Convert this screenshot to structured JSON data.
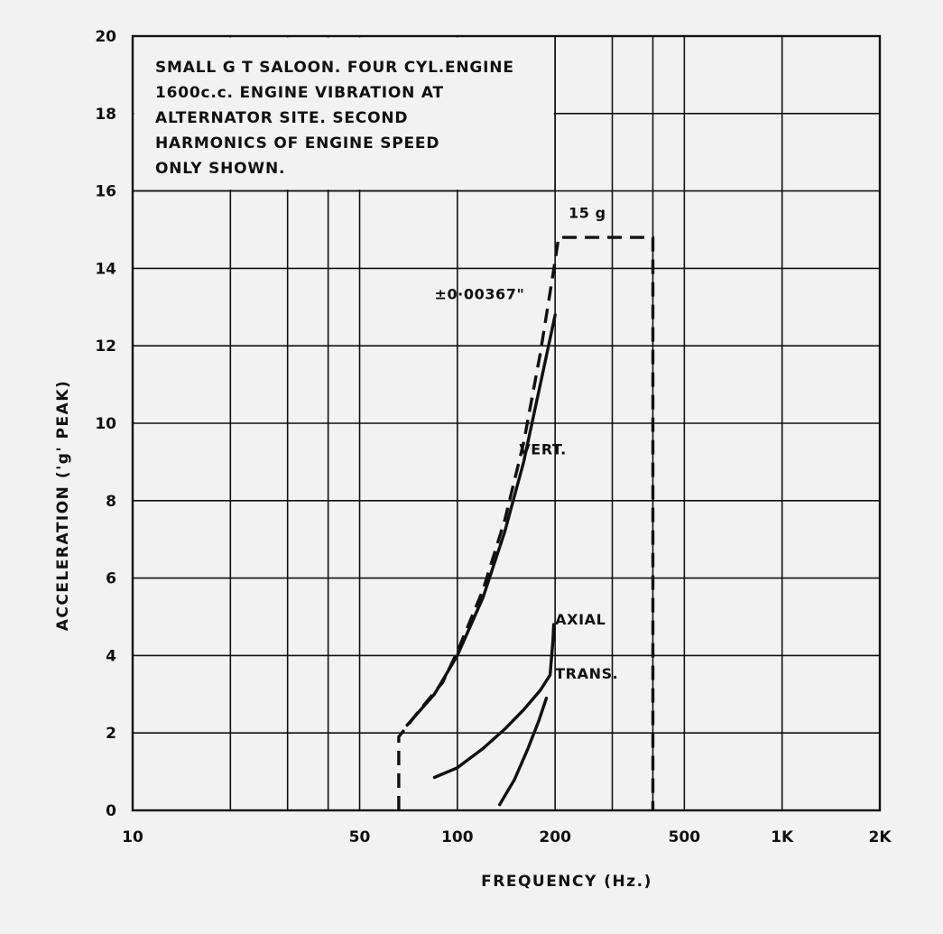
{
  "chart_data": {
    "type": "line",
    "title_lines": [
      "SMALL G T SALOON. FOUR CYL.ENGINE",
      "1600c.c.  ENGINE VIBRATION AT",
      "ALTERNATOR SITE.   SECOND",
      "HARMONICS OF ENGINE SPEED",
      "ONLY SHOWN."
    ],
    "xlabel": "FREQUENCY (Hz.)",
    "ylabel": "ACCELERATION  ('g'  PEAK)",
    "x_scale": "log",
    "xlim": [
      10,
      2000
    ],
    "ylim": [
      0,
      20
    ],
    "x_ticks": [
      {
        "value": 10,
        "label": "10"
      },
      {
        "value": 50,
        "label": "50"
      },
      {
        "value": 100,
        "label": "100"
      },
      {
        "value": 200,
        "label": "200"
      },
      {
        "value": 500,
        "label": "500"
      },
      {
        "value": 1000,
        "label": "1K"
      },
      {
        "value": 2000,
        "label": "2K"
      }
    ],
    "y_ticks": [
      0,
      2,
      4,
      6,
      8,
      10,
      12,
      14,
      16,
      18,
      20
    ],
    "grid": true,
    "series": [
      {
        "name": "VERT.",
        "style": "solid",
        "points": [
          [
            70,
            2.2
          ],
          [
            85,
            3.0
          ],
          [
            100,
            4.0
          ],
          [
            120,
            5.5
          ],
          [
            140,
            7.2
          ],
          [
            160,
            9.0
          ],
          [
            180,
            11.0
          ],
          [
            200,
            12.8
          ]
        ]
      },
      {
        "name": "AXIAL",
        "style": "solid",
        "points": [
          [
            135,
            0.15
          ],
          [
            150,
            0.8
          ],
          [
            165,
            1.6
          ],
          [
            178,
            2.3
          ],
          [
            188,
            2.9
          ]
        ]
      },
      {
        "name": "TRANS.",
        "style": "solid",
        "points": [
          [
            85,
            0.85
          ],
          [
            100,
            1.1
          ],
          [
            120,
            1.6
          ],
          [
            140,
            2.1
          ],
          [
            160,
            2.6
          ],
          [
            180,
            3.1
          ],
          [
            193,
            3.5
          ],
          [
            197,
            4.4
          ],
          [
            198,
            4.8
          ]
        ]
      },
      {
        "name": "±0.00367\"",
        "style": "dashed",
        "points": [
          [
            66,
            0
          ],
          [
            66,
            1.9
          ],
          [
            75,
            2.5
          ],
          [
            90,
            3.3
          ],
          [
            100,
            4.1
          ],
          [
            120,
            5.7
          ],
          [
            140,
            7.5
          ],
          [
            160,
            9.5
          ],
          [
            180,
            11.8
          ],
          [
            200,
            14.2
          ],
          [
            205,
            14.8
          ],
          [
            400,
            14.8
          ],
          [
            400,
            0
          ]
        ]
      }
    ],
    "annotations": [
      {
        "text": "15 g",
        "x": 220,
        "y": 15.3
      },
      {
        "text": "±0·00367\"",
        "x": 85,
        "y": 13.2
      },
      {
        "text": "VERT.",
        "x": 155,
        "y": 9.2
      },
      {
        "text": "AXIAL",
        "x": 200,
        "y": 4.8
      },
      {
        "text": "TRANS.",
        "x": 200,
        "y": 3.4
      }
    ]
  }
}
